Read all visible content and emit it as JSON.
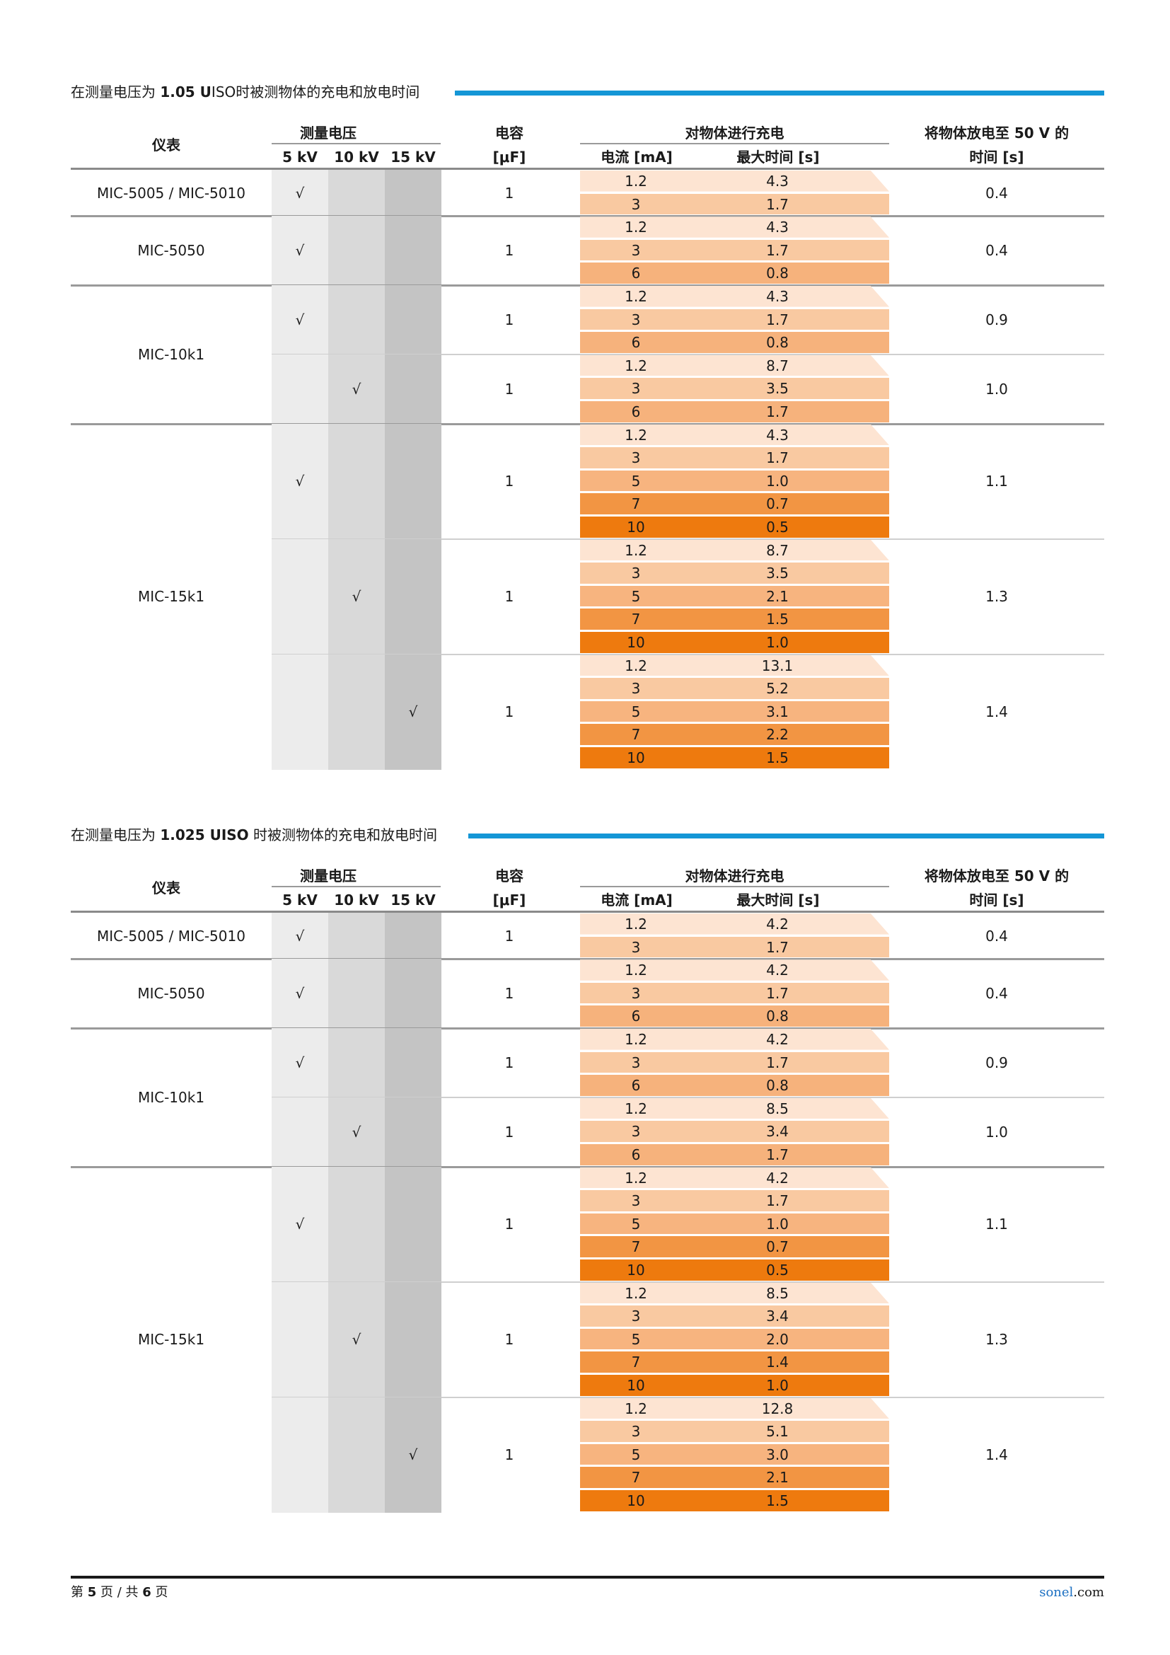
{
  "colors": {
    "accent": "#1496d6",
    "brand": "#1b6fc2",
    "col_5kv": "#ececec",
    "col_10kv": "#d9d9d9",
    "col_15kv": "#c4c4c4",
    "current_shades": {
      "1.2": "#fde4d2",
      "3": "#f9c9a1",
      "5": "#f7b47f",
      "6": "#f6b27c",
      "7": "#f29543",
      "10": "#ee7a0e"
    }
  },
  "tables": [
    {
      "title_prefix": "在测量电压为 ",
      "title_bold": "1.05 U",
      "title_suffix": "ISO时被测物体的充电和放电时间",
      "headers": {
        "instrument": "仪表",
        "voltage": "测量电压",
        "v5": "5 kV",
        "v10": "10 kV",
        "v15": "15 kV",
        "capacitance_1": "电容",
        "capacitance_2": "[μF]",
        "charge": "对物体进行充电",
        "current": "电流 [mA]",
        "max_time": "最大时间 [s]",
        "discharge_1": "将物体放电至 50 V 的",
        "discharge_2": "时间 [s]"
      },
      "instruments": [
        {
          "name": "MIC-5005 / MIC-5010",
          "groups": [
            {
              "kv": "5",
              "check": "√",
              "capacitance": "1",
              "discharge": "0.4",
              "rows": [
                {
                  "current": "1.2",
                  "time": "4.3"
                },
                {
                  "current": "3",
                  "time": "1.7"
                }
              ]
            }
          ]
        },
        {
          "name": "MIC-5050",
          "groups": [
            {
              "kv": "5",
              "check": "√",
              "capacitance": "1",
              "discharge": "0.4",
              "rows": [
                {
                  "current": "1.2",
                  "time": "4.3"
                },
                {
                  "current": "3",
                  "time": "1.7"
                },
                {
                  "current": "6",
                  "time": "0.8"
                }
              ]
            }
          ]
        },
        {
          "name": "MIC-10k1",
          "groups": [
            {
              "kv": "5",
              "check": "√",
              "capacitance": "1",
              "discharge": "0.9",
              "rows": [
                {
                  "current": "1.2",
                  "time": "4.3"
                },
                {
                  "current": "3",
                  "time": "1.7"
                },
                {
                  "current": "6",
                  "time": "0.8"
                }
              ]
            },
            {
              "kv": "10",
              "check": "√",
              "capacitance": "1",
              "discharge": "1.0",
              "rows": [
                {
                  "current": "1.2",
                  "time": "8.7"
                },
                {
                  "current": "3",
                  "time": "3.5"
                },
                {
                  "current": "6",
                  "time": "1.7"
                }
              ]
            }
          ]
        },
        {
          "name": "MIC-15k1",
          "groups": [
            {
              "kv": "5",
              "check": "√",
              "capacitance": "1",
              "discharge": "1.1",
              "rows": [
                {
                  "current": "1.2",
                  "time": "4.3"
                },
                {
                  "current": "3",
                  "time": "1.7"
                },
                {
                  "current": "5",
                  "time": "1.0"
                },
                {
                  "current": "7",
                  "time": "0.7"
                },
                {
                  "current": "10",
                  "time": "0.5"
                }
              ]
            },
            {
              "kv": "10",
              "check": "√",
              "capacitance": "1",
              "discharge": "1.3",
              "rows": [
                {
                  "current": "1.2",
                  "time": "8.7"
                },
                {
                  "current": "3",
                  "time": "3.5"
                },
                {
                  "current": "5",
                  "time": "2.1"
                },
                {
                  "current": "7",
                  "time": "1.5"
                },
                {
                  "current": "10",
                  "time": "1.0"
                }
              ]
            },
            {
              "kv": "15",
              "check": "√",
              "capacitance": "1",
              "discharge": "1.4",
              "rows": [
                {
                  "current": "1.2",
                  "time": "13.1"
                },
                {
                  "current": "3",
                  "time": "5.2"
                },
                {
                  "current": "5",
                  "time": "3.1"
                },
                {
                  "current": "7",
                  "time": "2.2"
                },
                {
                  "current": "10",
                  "time": "1.5"
                }
              ]
            }
          ]
        }
      ]
    },
    {
      "title_prefix": "在测量电压为 ",
      "title_bold": "1.025 UISO",
      "title_suffix": " 时被测物体的充电和放电时间",
      "headers": {
        "instrument": "仪表",
        "voltage": "测量电压",
        "v5": "5 kV",
        "v10": "10 kV",
        "v15": "15 kV",
        "capacitance_1": "电容",
        "capacitance_2": "[μF]",
        "charge": "对物体进行充电",
        "current": "电流 [mA]",
        "max_time": "最大时间 [s]",
        "discharge_1": "将物体放电至 50 V 的",
        "discharge_2": "时间 [s]"
      },
      "instruments": [
        {
          "name": "MIC-5005 / MIC-5010",
          "groups": [
            {
              "kv": "5",
              "check": "√",
              "capacitance": "1",
              "discharge": "0.4",
              "rows": [
                {
                  "current": "1.2",
                  "time": "4.2"
                },
                {
                  "current": "3",
                  "time": "1.7"
                }
              ]
            }
          ]
        },
        {
          "name": "MIC-5050",
          "groups": [
            {
              "kv": "5",
              "check": "√",
              "capacitance": "1",
              "discharge": "0.4",
              "rows": [
                {
                  "current": "1.2",
                  "time": "4.2"
                },
                {
                  "current": "3",
                  "time": "1.7"
                },
                {
                  "current": "6",
                  "time": "0.8"
                }
              ]
            }
          ]
        },
        {
          "name": "MIC-10k1",
          "groups": [
            {
              "kv": "5",
              "check": "√",
              "capacitance": "1",
              "discharge": "0.9",
              "rows": [
                {
                  "current": "1.2",
                  "time": "4.2"
                },
                {
                  "current": "3",
                  "time": "1.7"
                },
                {
                  "current": "6",
                  "time": "0.8"
                }
              ]
            },
            {
              "kv": "10",
              "check": "√",
              "capacitance": "1",
              "discharge": "1.0",
              "rows": [
                {
                  "current": "1.2",
                  "time": "8.5"
                },
                {
                  "current": "3",
                  "time": "3.4"
                },
                {
                  "current": "6",
                  "time": "1.7"
                }
              ]
            }
          ]
        },
        {
          "name": "MIC-15k1",
          "groups": [
            {
              "kv": "5",
              "check": "√",
              "capacitance": "1",
              "discharge": "1.1",
              "rows": [
                {
                  "current": "1.2",
                  "time": "4.2"
                },
                {
                  "current": "3",
                  "time": "1.7"
                },
                {
                  "current": "5",
                  "time": "1.0"
                },
                {
                  "current": "7",
                  "time": "0.7"
                },
                {
                  "current": "10",
                  "time": "0.5"
                }
              ]
            },
            {
              "kv": "10",
              "check": "√",
              "capacitance": "1",
              "discharge": "1.3",
              "rows": [
                {
                  "current": "1.2",
                  "time": "8.5"
                },
                {
                  "current": "3",
                  "time": "3.4"
                },
                {
                  "current": "5",
                  "time": "2.0"
                },
                {
                  "current": "7",
                  "time": "1.4"
                },
                {
                  "current": "10",
                  "time": "1.0"
                }
              ]
            },
            {
              "kv": "15",
              "check": "√",
              "capacitance": "1",
              "discharge": "1.4",
              "rows": [
                {
                  "current": "1.2",
                  "time": "12.8"
                },
                {
                  "current": "3",
                  "time": "5.1"
                },
                {
                  "current": "5",
                  "time": "3.0"
                },
                {
                  "current": "7",
                  "time": "2.1"
                },
                {
                  "current": "10",
                  "time": "1.5"
                }
              ]
            }
          ]
        }
      ]
    }
  ],
  "footer": {
    "page_prefix": "第 ",
    "page_num": "5",
    "page_mid": " 页 / 共 ",
    "page_total": "6",
    "page_suffix": " 页",
    "brand": "sonel",
    "domain": ".com"
  }
}
